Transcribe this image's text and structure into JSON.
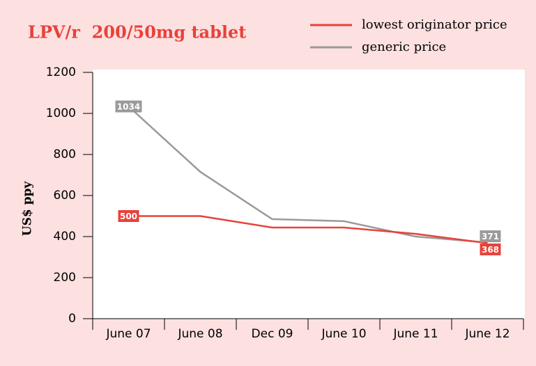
{
  "chart_data": {
    "type": "line",
    "title": "LPV/r  200/50mg tablet",
    "y_label": "US$ ppy",
    "categories": [
      "June 07",
      "June 08",
      "Dec 09",
      "June 10",
      "June 11",
      "June 12"
    ],
    "series": [
      {
        "name": "lowest originator price",
        "color": "#e8413a",
        "values": [
          500,
          500,
          444,
          444,
          413,
          368
        ]
      },
      {
        "name": "generic price",
        "color": "#9a9a9a",
        "values": [
          1034,
          715,
          485,
          475,
          400,
          371
        ]
      }
    ],
    "ylim": [
      0,
      1200
    ],
    "yticks": [
      0,
      200,
      400,
      600,
      800,
      1000,
      1200
    ],
    "legend": "top-right"
  }
}
